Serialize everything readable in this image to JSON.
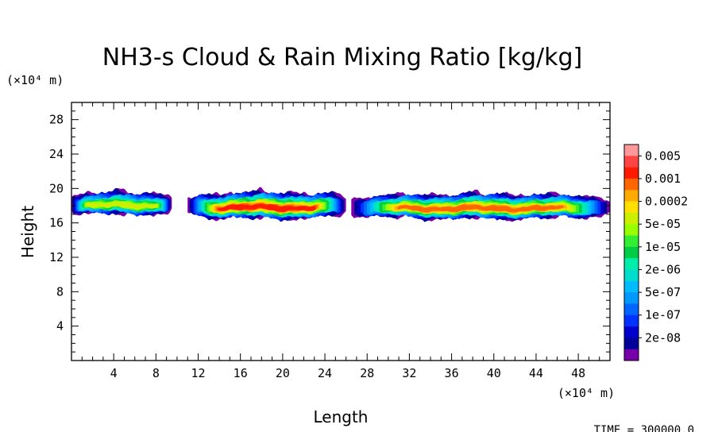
{
  "chart_data": {
    "type": "heatmap",
    "title": "NH3-s Cloud & Rain Mixing Ratio [kg/kg]",
    "xlabel": "Length",
    "ylabel": "Height",
    "x_unit": "(×10⁴ m)",
    "y_unit": "(×10⁴ m)",
    "xlim": [
      0,
      51
    ],
    "ylim": [
      0,
      30
    ],
    "x_ticks": [
      4,
      8,
      12,
      16,
      20,
      24,
      28,
      32,
      36,
      40,
      44,
      48
    ],
    "y_ticks": [
      4,
      8,
      12,
      16,
      20,
      24,
      28
    ],
    "colorbar": {
      "labels": [
        "0.005",
        "0.001",
        "0.0002",
        "5e-05",
        "1e-05",
        "2e-06",
        "5e-07",
        "1e-07",
        "2e-08"
      ],
      "colors": [
        "#ff9999",
        "#ff4444",
        "#ff1a00",
        "#ff6600",
        "#ffaa00",
        "#ffe000",
        "#ccee00",
        "#99ff00",
        "#33ee33",
        "#00cc44",
        "#00eeaa",
        "#00ddcc",
        "#00bbff",
        "#0099ff",
        "#0066ff",
        "#0033ff",
        "#0000cc",
        "#000099",
        "#7700aa"
      ]
    },
    "cloud_segments": [
      {
        "x_start": 0,
        "x_end": 9.5,
        "y_bottom": 16.5,
        "y_top": 20,
        "peak_level": 13
      },
      {
        "x_start": 11,
        "x_end": 26,
        "y_bottom": 16,
        "y_top": 20,
        "peak_level": 17
      },
      {
        "x_start": 26.5,
        "x_end": 51,
        "y_bottom": 16,
        "y_top": 19.8,
        "peak_level": 16
      }
    ],
    "time_label": "TIME = 300000.0"
  }
}
